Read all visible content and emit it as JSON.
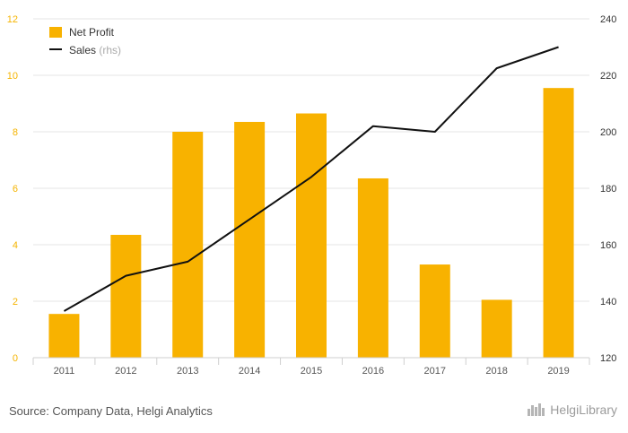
{
  "chart_data": {
    "type": "bar",
    "categories": [
      "2011",
      "2012",
      "2013",
      "2014",
      "2015",
      "2016",
      "2017",
      "2018",
      "2019"
    ],
    "series": [
      {
        "name": "Net Profit",
        "type": "bar",
        "axis": "left",
        "color": "#f8b200",
        "values": [
          1.55,
          4.35,
          8.0,
          8.35,
          8.65,
          6.35,
          3.3,
          2.05,
          9.55
        ]
      },
      {
        "name": "Sales",
        "name_suffix": "(rhs)",
        "type": "line",
        "axis": "right",
        "color": "#111111",
        "values": [
          136.5,
          149,
          154,
          169,
          184,
          202,
          200,
          222.5,
          230
        ]
      }
    ],
    "ylim_left": [
      0,
      12
    ],
    "yticks_left": [
      0,
      2,
      4,
      6,
      8,
      10,
      12
    ],
    "ylim_right": [
      120,
      240
    ],
    "yticks_right": [
      120,
      140,
      160,
      180,
      200,
      220,
      240
    ],
    "grid": "horizontal",
    "legend_position": "top-left",
    "colors": {
      "left_axis": "#f5b400",
      "right_axis": "#333333"
    }
  },
  "footer": {
    "source": "Source: Company Data, Helgi Analytics",
    "brand": "HelgiLibrary"
  }
}
